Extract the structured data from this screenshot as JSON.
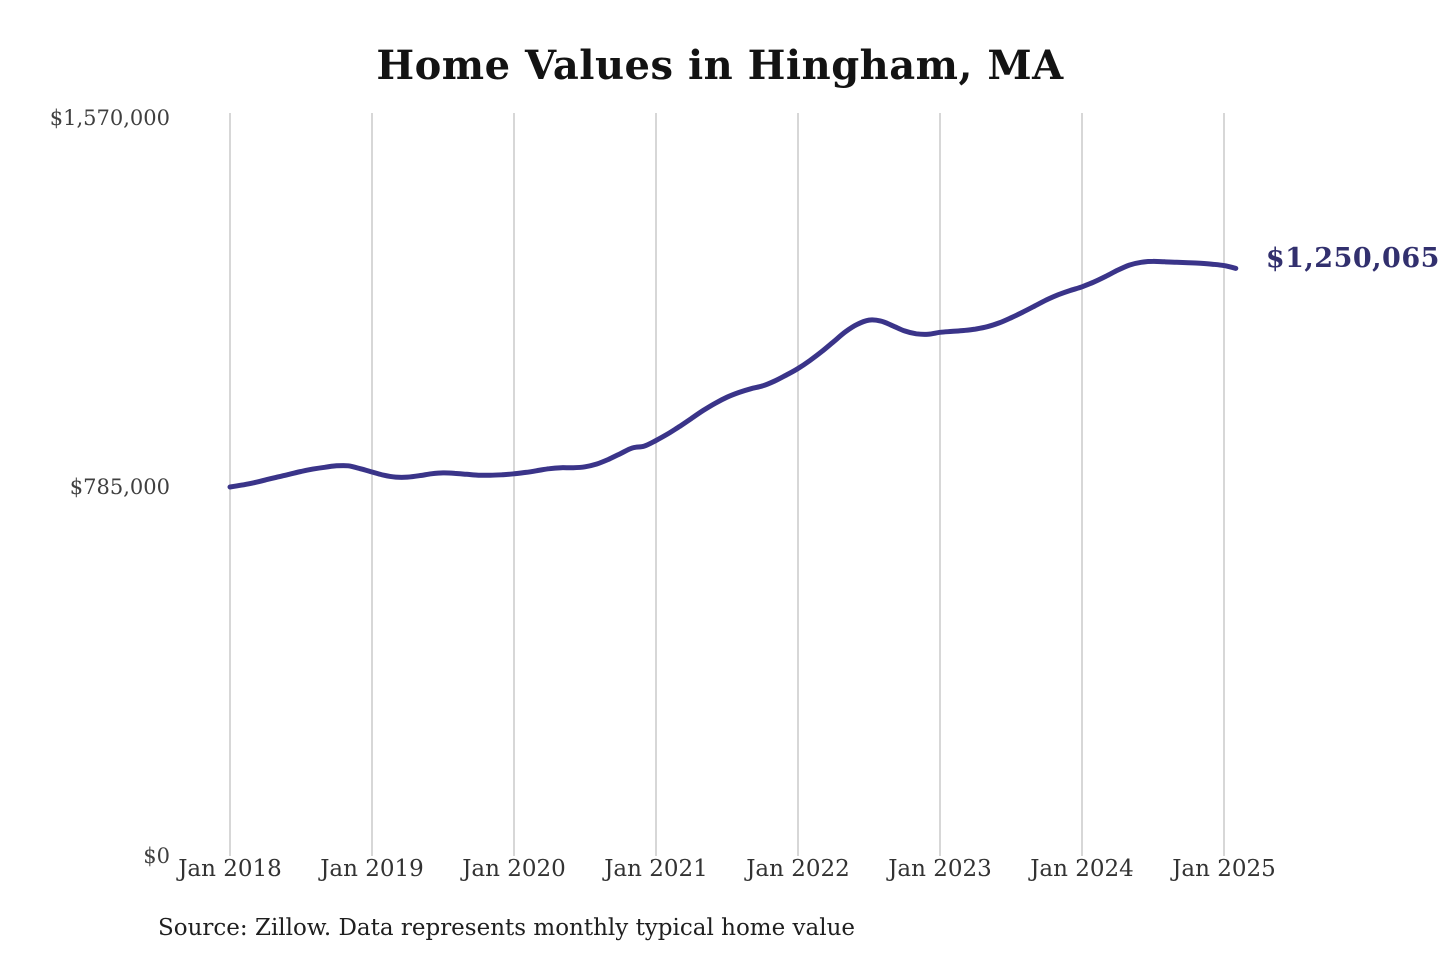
{
  "page": {
    "background_color": "#ffffff"
  },
  "chart": {
    "title": "Home Values in Hingham, MA",
    "source_note": "Source: Zillow. Data represents monthly typical home value",
    "end_label": "$1,250,065",
    "line_color": "#3a3489",
    "end_label_color": "#32306e",
    "grid_color": "#c6c6c6",
    "y_tick_color": "#3f3f3f",
    "x_tick_color": "#333333"
  },
  "chart_data": {
    "type": "line",
    "title": "Home Values in Hingham, MA",
    "xlabel": "",
    "ylabel": "",
    "ylim": [
      0,
      1570000
    ],
    "y_ticks": [
      0,
      785000,
      1570000
    ],
    "y_tick_labels": [
      "$0",
      "$785,000",
      "$1,570,000"
    ],
    "x_tick_labels": [
      "Jan 2018",
      "Jan 2019",
      "Jan 2020",
      "Jan 2021",
      "Jan 2022",
      "Jan 2023",
      "Jan 2024",
      "Jan 2025"
    ],
    "x_start_month": "2018-01",
    "x_end_month": "2025-02",
    "grid": "vertical-only",
    "legend": "none",
    "annotation_last_value": 1250065,
    "series": [
      {
        "name": "Monthly typical home value",
        "values": [
          785000,
          789000,
          794000,
          800000,
          806000,
          812000,
          818000,
          823000,
          827000,
          830000,
          830000,
          824000,
          817000,
          810000,
          806000,
          806000,
          809000,
          813000,
          815000,
          814000,
          812000,
          810000,
          810000,
          811000,
          813000,
          816000,
          820000,
          824000,
          826000,
          826000,
          828000,
          834000,
          844000,
          856000,
          868000,
          872000,
          884000,
          898000,
          914000,
          931000,
          948000,
          963000,
          976000,
          986000,
          994000,
          1000000,
          1010000,
          1023000,
          1037000,
          1054000,
          1073000,
          1094000,
          1115000,
          1131000,
          1140000,
          1138000,
          1128000,
          1117000,
          1111000,
          1110000,
          1114000,
          1116000,
          1118000,
          1121000,
          1126000,
          1134000,
          1145000,
          1157000,
          1170000,
          1183000,
          1194000,
          1203000,
          1211000,
          1221000,
          1233000,
          1246000,
          1257000,
          1263000,
          1265000,
          1264000,
          1263000,
          1262000,
          1261000,
          1259000,
          1256000,
          1250065
        ]
      }
    ]
  }
}
